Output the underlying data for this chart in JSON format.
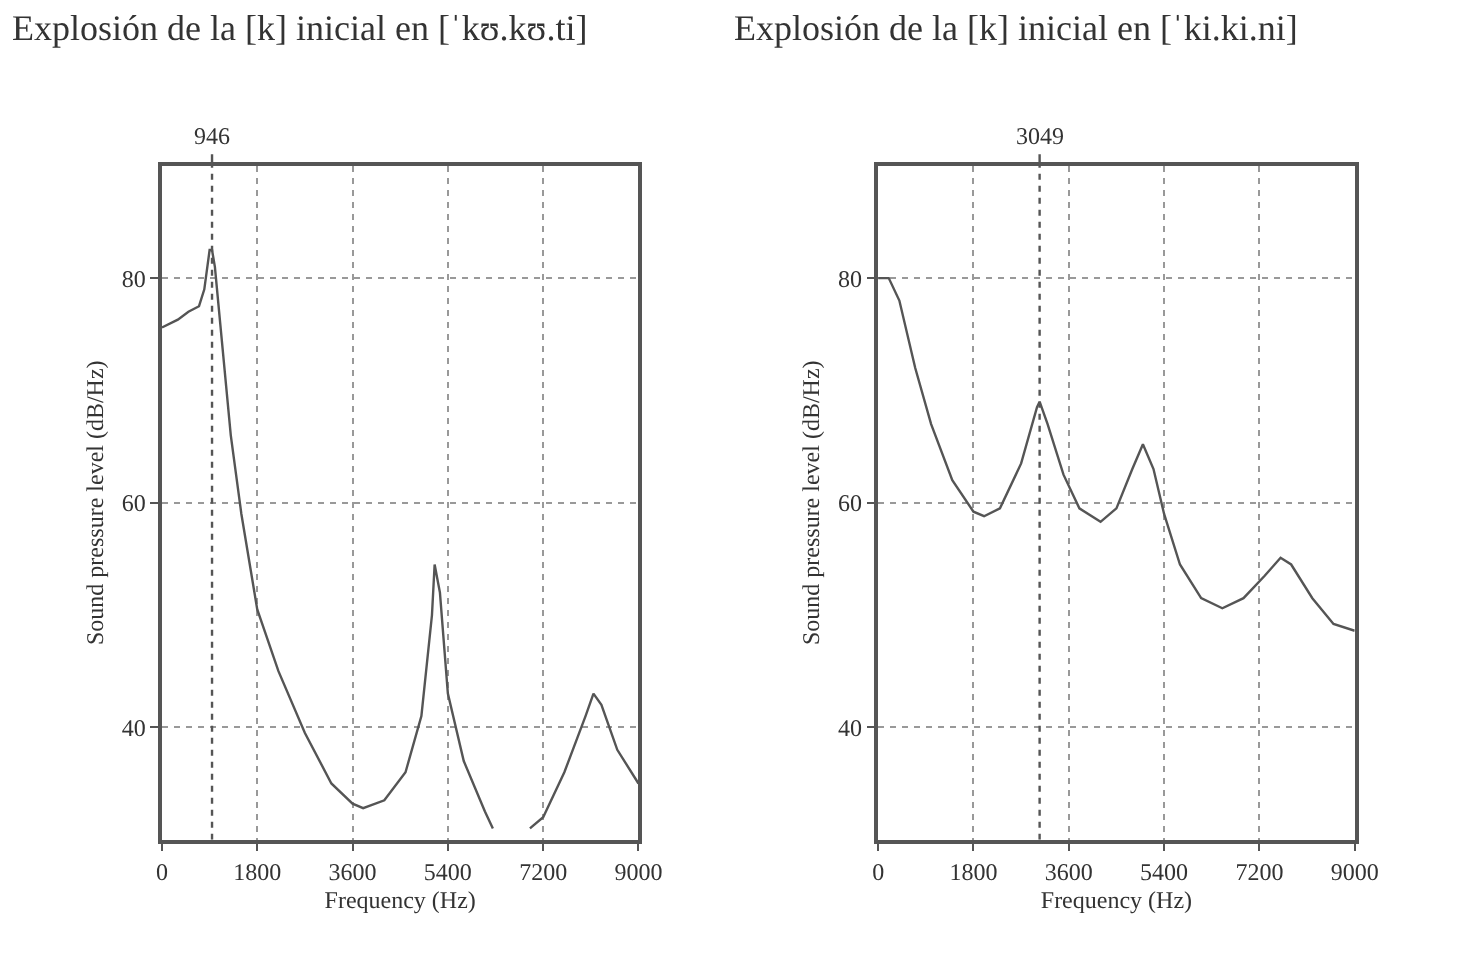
{
  "chart_data": [
    {
      "type": "line",
      "title": "Explosión de la [k] inicial en [ˈkʊ.kʊ.ti]",
      "xlabel": "Frequency (Hz)",
      "ylabel": "Sound pressure level (dB/Hz)",
      "x": [
        0,
        300,
        500,
        700,
        800,
        900,
        946,
        1000,
        1100,
        1300,
        1500,
        1800,
        2200,
        2700,
        3200,
        3600,
        3800,
        4200,
        4600,
        4900,
        5100,
        5150,
        5250,
        5400,
        5700,
        6100,
        6250,
        6600,
        6950,
        7200,
        7600,
        8000,
        8150,
        8300,
        8600,
        9000
      ],
      "series": [
        {
          "color": "#555555",
          "values": [
            75.6,
            76.3,
            77,
            77.5,
            79,
            82.5,
            82.5,
            81,
            76,
            66,
            59,
            50.5,
            45,
            39.5,
            35,
            33.2,
            32.8,
            33.5,
            36,
            41,
            50,
            54.5,
            52,
            43,
            37,
            32.5,
            31,
            null,
            31,
            32,
            36,
            41,
            43,
            42,
            38,
            35
          ]
        }
      ],
      "xlim": [
        0,
        9000
      ],
      "xticks": [
        0,
        1800,
        3600,
        5400,
        7200,
        9000
      ],
      "ylim": [
        30,
        90
      ],
      "yticks": [
        40,
        60,
        80
      ],
      "grid": true,
      "ref_lines": [
        {
          "axis": "x",
          "value": 946,
          "label": "946",
          "color": "#555555",
          "line_style": "dotted"
        }
      ]
    },
    {
      "type": "line",
      "title": "Explosión de la [k] inicial en [ˈki.ki.ni]",
      "xlabel": "Frequency (Hz)",
      "ylabel": "Sound pressure level (dB/Hz)",
      "x": [
        0,
        200,
        400,
        700,
        1000,
        1400,
        1800,
        2000,
        2300,
        2700,
        3000,
        3049,
        3200,
        3500,
        3800,
        4200,
        4500,
        4800,
        5000,
        5200,
        5400,
        5700,
        6100,
        6500,
        6900,
        7300,
        7600,
        7800,
        8200,
        8600,
        9000
      ],
      "series": [
        {
          "color": "#555555",
          "values": [
            80,
            80,
            78,
            72,
            67,
            62,
            59.2,
            58.8,
            59.5,
            63.5,
            68.5,
            69,
            67,
            62.5,
            59.5,
            58.3,
            59.5,
            63,
            65.2,
            63,
            59,
            54.5,
            51.5,
            50.6,
            51.5,
            53.5,
            55.1,
            54.5,
            51.5,
            49.2,
            48.6
          ]
        }
      ],
      "xlim": [
        0,
        9000
      ],
      "xticks": [
        0,
        1800,
        3600,
        5400,
        7200,
        9000
      ],
      "ylim": [
        30,
        90
      ],
      "yticks": [
        40,
        60,
        80
      ],
      "grid": true,
      "ref_lines": [
        {
          "axis": "x",
          "value": 3049,
          "label": "3049",
          "color": "#555555",
          "line_style": "dotted"
        }
      ]
    }
  ]
}
